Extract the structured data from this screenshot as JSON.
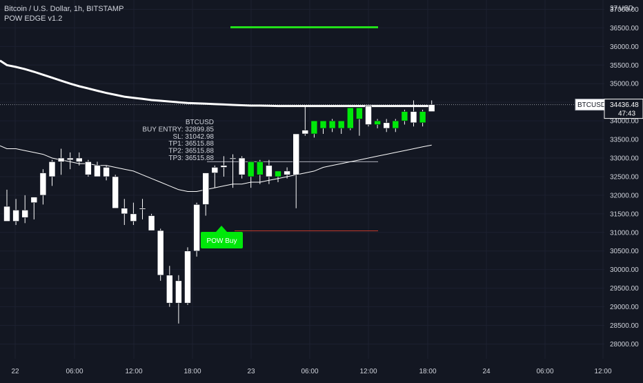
{
  "legend": {
    "symbol_line": "Bitcoin / U.S. Dollar, 1h, BITSTAMP",
    "indicator_line": "POW EDGE v1.2"
  },
  "price_axis": {
    "currency": "USD",
    "ticks": [
      "37000.00",
      "36500.00",
      "36000.00",
      "35500.00",
      "35000.00",
      "34500.00",
      "34000.00",
      "33500.00",
      "33000.00",
      "32500.00",
      "32000.00",
      "31500.00",
      "31000.00",
      "30500.00",
      "30000.00",
      "29500.00",
      "29000.00",
      "28500.00",
      "28000.00"
    ],
    "top_partial": "37"
  },
  "time_axis": {
    "ticks": [
      "22",
      "06:00",
      "12:00",
      "18:00",
      "23",
      "06:00",
      "12:00",
      "18:00",
      "24",
      "06:00",
      "12:00"
    ]
  },
  "price_tag": {
    "symbol": "BTCUSD",
    "price": "34436.48",
    "countdown": "47:43"
  },
  "signal_box": {
    "symbol": "BTCUSD",
    "lines": [
      "BUY ENTRY: 32899.85",
      "SL: 31042.98",
      "TP1: 36515.88",
      "TP2: 36515.88",
      "TP3: 36515.88"
    ]
  },
  "buy_label": "POW Buy",
  "colors": {
    "background": "#131722",
    "bull_candle": "#00e80a",
    "bear_candle": "#ffffff",
    "tp_line": "#22e01a",
    "sl_line": "#c0392b",
    "text": "#d1d4dc"
  },
  "chart_data": {
    "type": "candlestick",
    "symbol": "BTCUSD",
    "interval": "1h",
    "exchange": "BITSTAMP",
    "last_price": 34436.48,
    "y_range": [
      27600,
      37250
    ],
    "levels": {
      "buy_entry": 32899.85,
      "stop_loss": 31042.98,
      "tp1": 36515.88,
      "tp2": 36515.88,
      "tp3": 36515.88
    },
    "candles": [
      {
        "o": 31700,
        "h": 32150,
        "l": 31300,
        "c": 31300,
        "signal": false
      },
      {
        "o": 31300,
        "h": 31900,
        "l": 31200,
        "c": 31600,
        "signal": false
      },
      {
        "o": 31600,
        "h": 32000,
        "l": 31250,
        "c": 31400,
        "signal": false
      },
      {
        "o": 31800,
        "h": 31950,
        "l": 31350,
        "c": 31950,
        "signal": false
      },
      {
        "o": 32000,
        "h": 32700,
        "l": 31750,
        "c": 32600,
        "signal": false
      },
      {
        "o": 32500,
        "h": 32950,
        "l": 32250,
        "c": 32900,
        "signal": false
      },
      {
        "o": 32900,
        "h": 33250,
        "l": 32550,
        "c": 33000,
        "signal": false
      },
      {
        "o": 33000,
        "h": 33150,
        "l": 32700,
        "c": 32950,
        "signal": false
      },
      {
        "o": 33000,
        "h": 33150,
        "l": 32800,
        "c": 32900,
        "signal": false
      },
      {
        "o": 32900,
        "h": 32950,
        "l": 32500,
        "c": 32550,
        "signal": false
      },
      {
        "o": 32800,
        "h": 32900,
        "l": 32550,
        "c": 32500,
        "signal": false
      },
      {
        "o": 32750,
        "h": 32800,
        "l": 32400,
        "c": 32500,
        "signal": false
      },
      {
        "o": 32500,
        "h": 32550,
        "l": 31650,
        "c": 31650,
        "signal": false
      },
      {
        "o": 31650,
        "h": 31900,
        "l": 31200,
        "c": 31500,
        "signal": false
      },
      {
        "o": 31500,
        "h": 31800,
        "l": 31200,
        "c": 31300,
        "signal": false
      },
      {
        "o": 31650,
        "h": 31900,
        "l": 31350,
        "c": 31650,
        "signal": false
      },
      {
        "o": 31450,
        "h": 31500,
        "l": 31050,
        "c": 31050,
        "signal": false
      },
      {
        "o": 31050,
        "h": 31100,
        "l": 29700,
        "c": 29850,
        "signal": false
      },
      {
        "o": 29850,
        "h": 30100,
        "l": 29000,
        "c": 29100,
        "signal": false
      },
      {
        "o": 29700,
        "h": 29850,
        "l": 28550,
        "c": 29100,
        "signal": false
      },
      {
        "o": 29100,
        "h": 30600,
        "l": 29050,
        "c": 30500,
        "signal": false
      },
      {
        "o": 30500,
        "h": 31800,
        "l": 30350,
        "c": 31750,
        "signal": false
      },
      {
        "o": 31750,
        "h": 32550,
        "l": 31450,
        "c": 32600,
        "signal": false
      },
      {
        "o": 32600,
        "h": 32800,
        "l": 32200,
        "c": 32750,
        "signal": false
      },
      {
        "o": 32750,
        "h": 33050,
        "l": 32500,
        "c": 32800,
        "signal": false
      },
      {
        "o": 33000,
        "h": 33100,
        "l": 32200,
        "c": 33000,
        "signal": false
      },
      {
        "o": 33000,
        "h": 33050,
        "l": 32450,
        "c": 32550,
        "signal": false
      },
      {
        "o": 32500,
        "h": 32900,
        "l": 32200,
        "c": 32900,
        "signal": true
      },
      {
        "o": 32550,
        "h": 32950,
        "l": 32300,
        "c": 32900,
        "signal": true
      },
      {
        "o": 32800,
        "h": 32950,
        "l": 32300,
        "c": 32500,
        "signal": false
      },
      {
        "o": 32500,
        "h": 32650,
        "l": 32350,
        "c": 32650,
        "signal": true
      },
      {
        "o": 32650,
        "h": 32750,
        "l": 32450,
        "c": 32550,
        "signal": false
      },
      {
        "o": 32550,
        "h": 33650,
        "l": 31650,
        "c": 33650,
        "signal": false
      },
      {
        "o": 33650,
        "h": 34400,
        "l": 33600,
        "c": 33750,
        "signal": false
      },
      {
        "o": 33650,
        "h": 34000,
        "l": 33550,
        "c": 34000,
        "signal": true
      },
      {
        "o": 33800,
        "h": 34000,
        "l": 33650,
        "c": 34000,
        "signal": true
      },
      {
        "o": 33800,
        "h": 34050,
        "l": 33700,
        "c": 34000,
        "signal": true
      },
      {
        "o": 33800,
        "h": 34000,
        "l": 33650,
        "c": 34000,
        "signal": true
      },
      {
        "o": 33800,
        "h": 34350,
        "l": 33750,
        "c": 34350,
        "signal": true
      },
      {
        "o": 34050,
        "h": 34350,
        "l": 33600,
        "c": 34350,
        "signal": true
      },
      {
        "o": 34400,
        "h": 34400,
        "l": 33850,
        "c": 33900,
        "signal": false
      },
      {
        "o": 33900,
        "h": 34050,
        "l": 33800,
        "c": 34000,
        "signal": true
      },
      {
        "o": 33950,
        "h": 34050,
        "l": 33700,
        "c": 33800,
        "signal": false
      },
      {
        "o": 33800,
        "h": 34050,
        "l": 33700,
        "c": 34000,
        "signal": true
      },
      {
        "o": 34000,
        "h": 34300,
        "l": 33900,
        "c": 34250,
        "signal": true
      },
      {
        "o": 34250,
        "h": 34550,
        "l": 33850,
        "c": 33950,
        "signal": false
      },
      {
        "o": 33950,
        "h": 34300,
        "l": 33850,
        "c": 34250,
        "signal": true
      },
      {
        "o": 34250,
        "h": 34550,
        "l": 34250,
        "c": 34436.48,
        "signal": false
      }
    ],
    "ma_long": [
      35500,
      35450,
      35390,
      35320,
      35240,
      35160,
      35080,
      35000,
      34930,
      34870,
      34810,
      34750,
      34700,
      34650,
      34620,
      34590,
      34560,
      34540,
      34520,
      34500,
      34480,
      34470,
      34460,
      34450,
      34440,
      34430,
      34420,
      34410,
      34410,
      34405,
      34400,
      34400,
      34400,
      34400,
      34400,
      34400,
      34400,
      34400,
      34400,
      34400,
      34400,
      34400,
      34400,
      34400,
      34400,
      34400,
      34400,
      34400
    ],
    "ma_short": [
      33250,
      33250,
      33200,
      33150,
      33100,
      33000,
      32950,
      32900,
      32850,
      32850,
      32800,
      32800,
      32750,
      32700,
      32650,
      32550,
      32450,
      32350,
      32250,
      32150,
      32100,
      32100,
      32150,
      32200,
      32250,
      32300,
      32300,
      32350,
      32350,
      32400,
      32450,
      32500,
      32550,
      32600,
      32650,
      32750,
      32800,
      32850,
      32900,
      32950,
      33000,
      33050,
      33100,
      33150,
      33200,
      33250,
      33300,
      33350
    ]
  }
}
